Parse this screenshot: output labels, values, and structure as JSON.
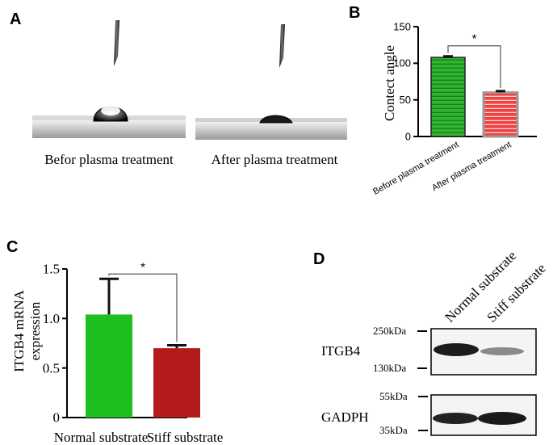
{
  "panels": {
    "A": {
      "label": "A",
      "captions": [
        "Befor plasma treatment",
        "After plasma treatment"
      ]
    },
    "B": {
      "label": "B"
    },
    "C": {
      "label": "C"
    },
    "D": {
      "label": "D",
      "lane_labels": [
        "Normal substrate",
        "Stiff substrate"
      ],
      "bands": [
        {
          "name": "ITGB4",
          "markers": [
            "250kDa",
            "130kDa"
          ],
          "intensities": [
            0.95,
            0.55
          ]
        },
        {
          "name": "GADPH",
          "markers": [
            "55kDa",
            "35kDa"
          ],
          "intensities": [
            0.85,
            0.9
          ]
        }
      ]
    }
  },
  "chart_data": [
    {
      "panel": "B",
      "type": "bar",
      "categories": [
        "Before plasma treatment",
        "After plasma treatment"
      ],
      "values": [
        108,
        60
      ],
      "errors": [
        1.5,
        2
      ],
      "ylabel": "Contect angle",
      "ylim": [
        0,
        150
      ],
      "yticks": [
        "0",
        "50",
        "100",
        "150"
      ],
      "significance": "*",
      "colors": [
        "#22aa22",
        "#ee3333"
      ],
      "grid": false
    },
    {
      "panel": "C",
      "type": "bar",
      "categories": [
        "Normal substrate",
        "Stiff substrate"
      ],
      "values": [
        1.04,
        0.7
      ],
      "errors": [
        0.36,
        0.03
      ],
      "ylabel": "ITGB4 mRNA expression",
      "ylabel_lines": [
        "ITGB4 mRNA",
        "expression"
      ],
      "ylim": [
        0,
        1.5
      ],
      "yticks": [
        "0",
        "0.5",
        "1.0",
        "1.5"
      ],
      "significance": "*",
      "colors": [
        "#1fbf1f",
        "#b31b1b"
      ],
      "grid": false
    }
  ]
}
